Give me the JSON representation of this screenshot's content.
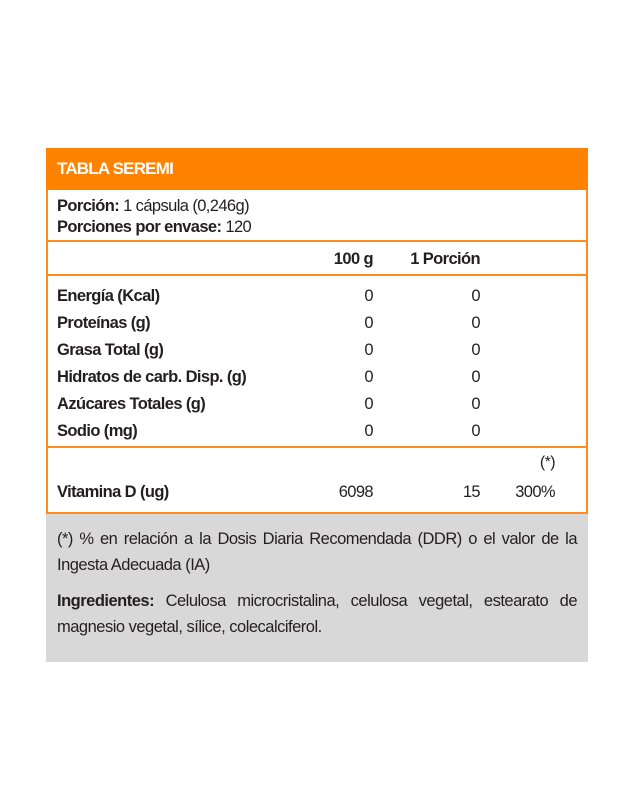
{
  "title": "TABLA SEREMI",
  "portion": {
    "label": "Porción:",
    "value": "1 cápsula (0,246g)"
  },
  "servings": {
    "label": "Porciones por envase:",
    "value": "120"
  },
  "columns": [
    "100 g",
    "1 Porción"
  ],
  "nutrients": [
    {
      "name": "Energía (Kcal)",
      "per100": "0",
      "perPortion": "0"
    },
    {
      "name": "Proteínas (g)",
      "per100": "0",
      "perPortion": "0"
    },
    {
      "name": "Grasa Total (g)",
      "per100": "0",
      "perPortion": "0"
    },
    {
      "name": "Hidratos de carb. Disp. (g)",
      "per100": "0",
      "perPortion": "0"
    },
    {
      "name": "Azúcares Totales (g)",
      "per100": "0",
      "perPortion": "0"
    },
    {
      "name": "Sodio (mg)",
      "per100": "0",
      "perPortion": "0"
    }
  ],
  "vitamin": {
    "marker": "(*)",
    "name": "Vitamina D (ug)",
    "per100": "6098",
    "perPortion": "15",
    "pct": "300%"
  },
  "footnote": "(*) % en relación a la Dosis Diaria Recomendada (DDR) o el valor de la Ingesta Adecuada (IA)",
  "ingredients": {
    "label": "Ingredientes:",
    "value": "Celulosa microcristalina, celulosa vegetal, estearato de magnesio vegetal, sílice, colecalciferol."
  },
  "colors": {
    "accent": "#ff8200",
    "footer_bg": "#d9d8d8"
  }
}
